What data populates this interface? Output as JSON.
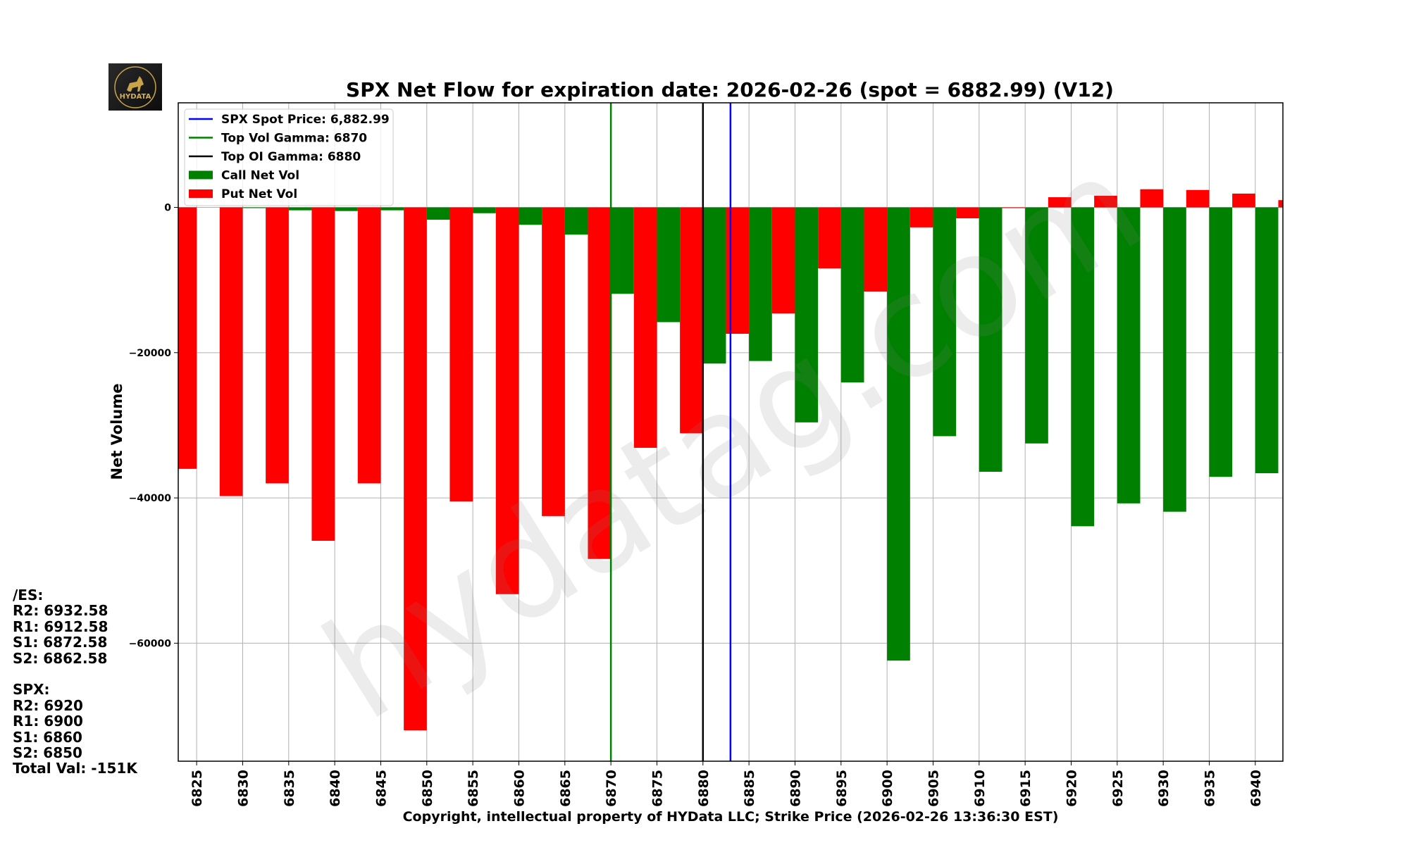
{
  "chart_data": {
    "type": "bar",
    "title": "SPX Net Flow for expiration date: 2026-02-26 (spot = 6882.99) (V12)",
    "xlabel": "Copyright, intellectual property of HYData LLC; Strike Price (2026-02-26 13:36:30 EST)",
    "ylabel": "Net Volume",
    "xlim": [
      6823,
      6943
    ],
    "ylim": [
      -76250,
      14400
    ],
    "grid": true,
    "legend_position": "top-left",
    "x_ticks": [
      6825,
      6830,
      6835,
      6840,
      6845,
      6850,
      6855,
      6860,
      6865,
      6870,
      6875,
      6880,
      6885,
      6890,
      6895,
      6900,
      6905,
      6910,
      6915,
      6920,
      6925,
      6930,
      6935,
      6940
    ],
    "y_ticks": [
      0,
      -20000,
      -40000,
      -60000
    ],
    "strikes": [
      6825,
      6830,
      6835,
      6840,
      6845,
      6850,
      6855,
      6860,
      6865,
      6870,
      6875,
      6880,
      6885,
      6890,
      6895,
      6900,
      6905,
      6910,
      6915,
      6920,
      6925,
      6930,
      6935,
      6940,
      6945
    ],
    "series": [
      {
        "name": "Call Net Vol",
        "color": "#008000",
        "values": [
          0,
          -100,
          -400,
          -500,
          -400,
          -1700,
          -800,
          -2400,
          -3750,
          -11900,
          -15800,
          -21500,
          -21150,
          -29600,
          -24100,
          -62400,
          -31500,
          -36400,
          -32500,
          -43900,
          -40750,
          -41900,
          -37100,
          -36600,
          0
        ]
      },
      {
        "name": "Put Net Vol",
        "color": "#ff0000",
        "values": [
          -36000,
          -39750,
          -38000,
          -45900,
          -38000,
          -72000,
          -40500,
          -53250,
          -42500,
          -48400,
          -33100,
          -31100,
          -17400,
          -14600,
          -8400,
          -11600,
          -2750,
          -1500,
          -100,
          1400,
          1600,
          2500,
          2400,
          1900,
          1000
        ]
      }
    ],
    "vlines": [
      {
        "name": "SPX Spot Price: 6,882.99",
        "x": 6882.99,
        "color": "#0000ff"
      },
      {
        "name": "Top Vol Gamma: 6870",
        "x": 6870,
        "color": "#008000"
      },
      {
        "name": "Top OI Gamma: 6880",
        "x": 6880,
        "color": "#000000"
      }
    ]
  },
  "watermark": "hydatag.com",
  "logo_text": "HYDATA",
  "side_levels": [
    "/ES:",
    "R2: 6932.58",
    "R1: 6912.58",
    "S1: 6872.58",
    "S2: 6862.58",
    "",
    "SPX:",
    "R2: 6920",
    "R1: 6900",
    "S1: 6860",
    "S2: 6850",
    "Total Val: -151K"
  ]
}
